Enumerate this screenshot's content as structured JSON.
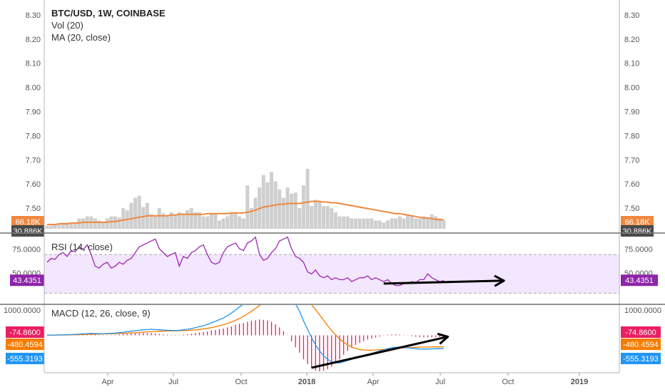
{
  "chart_data": {
    "type": "line",
    "title": "BTC/USD, 1W, COINBASE",
    "legend": [
      "Vol (20)",
      "MA (20, close)"
    ],
    "price_axis": {
      "ticks": [
        "8.30",
        "8.20",
        "8.10",
        "8.00",
        "7.90",
        "7.80",
        "7.70",
        "7.60",
        "7.50"
      ],
      "volume_ma_badge": "66.18K",
      "volume_cut_badge": "30.886K"
    },
    "volume": {
      "bars": [
        3,
        3,
        4,
        4,
        6,
        6,
        5,
        5,
        10,
        10,
        12,
        12,
        10,
        8,
        7,
        10,
        12,
        12,
        11,
        20,
        18,
        25,
        30,
        32,
        21,
        25,
        14,
        12,
        20,
        15,
        12,
        16,
        14,
        16,
        15,
        18,
        20,
        16,
        16,
        12,
        12,
        14,
        14,
        8,
        10,
        12,
        16,
        16,
        12,
        10,
        42,
        20,
        30,
        40,
        52,
        45,
        55,
        46,
        38,
        30,
        40,
        34,
        35,
        20,
        42,
        58,
        22,
        28,
        26,
        22,
        22,
        20,
        16,
        12,
        12,
        12,
        10,
        10,
        10,
        10,
        10,
        10,
        8,
        8,
        6,
        8,
        10,
        10,
        12,
        10,
        14,
        12,
        10,
        10,
        12,
        10,
        14,
        12,
        10,
        8
      ],
      "ma": [
        2,
        2,
        2,
        3,
        3,
        3,
        4,
        4,
        4,
        5,
        5,
        5,
        5,
        5,
        5,
        5,
        6,
        6,
        7,
        8,
        9,
        10,
        11,
        12,
        13,
        14,
        14,
        14,
        14,
        14,
        14,
        15,
        15,
        16,
        16,
        16,
        16,
        16,
        16,
        16,
        17,
        17,
        17,
        17,
        17,
        17,
        18,
        18,
        18,
        18,
        19,
        20,
        22,
        24,
        26,
        27,
        28,
        29,
        30,
        30,
        31,
        31,
        31,
        31,
        32,
        33,
        34,
        34,
        34,
        33,
        33,
        32,
        32,
        31,
        30,
        29,
        28,
        27,
        26,
        25,
        24,
        23,
        22,
        21,
        20,
        19,
        18,
        17,
        17,
        16,
        15,
        14,
        13,
        12,
        11,
        11,
        10,
        9,
        9,
        8
      ]
    },
    "rsi": {
      "label": "RSI (14, close)",
      "ticks": [
        "75.0000",
        "50.0000"
      ],
      "value_badge": "43.4351",
      "upper": 70,
      "lower": 30,
      "ylim": [
        20,
        90
      ],
      "values": [
        62,
        66,
        65,
        70,
        72,
        68,
        74,
        73,
        78,
        75,
        80,
        70,
        58,
        56,
        60,
        62,
        56,
        58,
        62,
        60,
        64,
        66,
        72,
        78,
        80,
        82,
        84,
        86,
        76,
        72,
        68,
        70,
        72,
        58,
        68,
        66,
        72,
        74,
        78,
        80,
        70,
        62,
        60,
        62,
        72,
        78,
        80,
        82,
        76,
        74,
        82,
        84,
        88,
        70,
        64,
        66,
        72,
        76,
        84,
        86,
        88,
        76,
        68,
        66,
        62,
        52,
        50,
        54,
        48,
        46,
        48,
        44,
        46,
        44,
        44,
        46,
        42,
        44,
        46,
        46,
        48,
        44,
        46,
        44,
        42,
        44,
        40,
        38,
        38,
        40,
        40,
        42,
        41,
        44,
        44,
        50,
        46,
        44,
        42,
        43
      ]
    },
    "macd": {
      "label": "MACD (12, 26, close, 9)",
      "ticks": [
        "1000.0000"
      ],
      "badges": [
        "-74.8600",
        "-480.4594",
        "-555.3193"
      ],
      "ylim": [
        -1500,
        1200
      ],
      "macd": [
        10,
        10,
        12,
        15,
        20,
        25,
        30,
        40,
        50,
        60,
        70,
        80,
        75,
        70,
        70,
        75,
        80,
        90,
        110,
        130,
        150,
        170,
        190,
        210,
        230,
        240,
        250,
        240,
        230,
        220,
        210,
        200,
        200,
        210,
        230,
        250,
        280,
        320,
        360,
        400,
        450,
        520,
        580,
        650,
        720,
        820,
        920,
        1050,
        1180,
        1300,
        1450,
        1600,
        1750,
        1900,
        2000,
        2100,
        2150,
        2150,
        2100,
        2000,
        1850,
        1600,
        1300,
        1000,
        600,
        250,
        -100,
        -400,
        -650,
        -850,
        -1000,
        -1100,
        -1150,
        -1150,
        -1100,
        -1050,
        -1000,
        -950,
        -900,
        -850,
        -800,
        -750,
        -700,
        -650,
        -600,
        -550,
        -520,
        -500,
        -500,
        -510,
        -520,
        -540,
        -560,
        -570,
        -575,
        -570,
        -565,
        -560,
        -557,
        -555
      ],
      "signal": [
        5,
        6,
        7,
        9,
        11,
        14,
        17,
        21,
        26,
        31,
        37,
        43,
        48,
        52,
        56,
        60,
        64,
        69,
        75,
        82,
        90,
        99,
        109,
        120,
        131,
        143,
        154,
        163,
        170,
        175,
        179,
        182,
        185,
        190,
        196,
        204,
        214,
        227,
        244,
        265,
        290,
        320,
        355,
        395,
        440,
        490,
        550,
        620,
        700,
        790,
        890,
        1000,
        1120,
        1240,
        1360,
        1480,
        1590,
        1690,
        1770,
        1830,
        1860,
        1850,
        1800,
        1720,
        1600,
        1450,
        1270,
        1070,
        850,
        630,
        410,
        200,
        20,
        -150,
        -290,
        -400,
        -490,
        -550,
        -590,
        -610,
        -620,
        -620,
        -610,
        -600,
        -590,
        -575,
        -560,
        -545,
        -530,
        -520,
        -510,
        -505,
        -500,
        -495,
        -490,
        -487,
        -485,
        -483,
        -481,
        -480
      ],
      "hist": [
        5,
        4,
        5,
        6,
        9,
        11,
        13,
        19,
        24,
        29,
        33,
        37,
        27,
        18,
        14,
        15,
        16,
        21,
        35,
        48,
        60,
        71,
        81,
        90,
        99,
        97,
        96,
        77,
        60,
        45,
        31,
        18,
        15,
        20,
        34,
        46,
        66,
        93,
        116,
        135,
        160,
        200,
        225,
        255,
        280,
        330,
        370,
        430,
        480,
        510,
        560,
        600,
        630,
        660,
        640,
        620,
        560,
        460,
        330,
        170,
        -10,
        -250,
        -500,
        -720,
        -1000,
        -1200,
        -1370,
        -1470,
        -1500,
        -1480,
        -1410,
        -1300,
        -1170,
        -1000,
        -810,
        -650,
        -510,
        -400,
        -310,
        -240,
        -180,
        -130,
        -90,
        -50,
        -10,
        25,
        40,
        45,
        30,
        10,
        -10,
        -35,
        -60,
        -75,
        -85,
        -83,
        -80,
        -77,
        -76,
        -75
      ]
    },
    "time_axis": {
      "labels": [
        "Apr",
        "Jul",
        "Oct",
        "2018",
        "Apr",
        "Jul",
        "Oct",
        "2019"
      ]
    },
    "annotations": [
      {
        "type": "arrow",
        "pane": "rsi",
        "from": [
          84,
          40
        ],
        "to": [
          114,
          43
        ]
      },
      {
        "type": "arrow",
        "pane": "macd",
        "from": [
          66,
          -1350
        ],
        "to": [
          100,
          -60
        ]
      }
    ]
  }
}
